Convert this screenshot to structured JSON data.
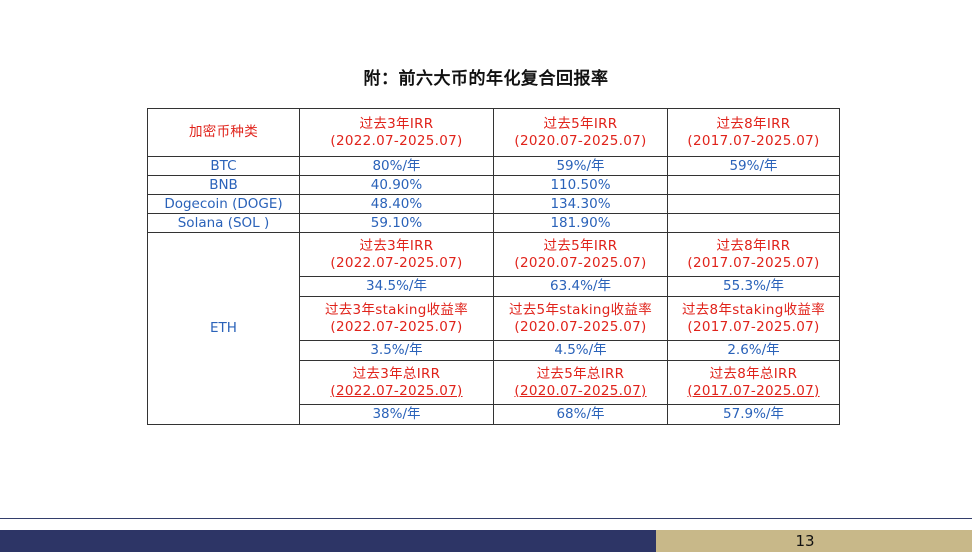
{
  "title": "附：前六大币的年化复合回报率",
  "table": {
    "corner_label": "加密币种类",
    "headers": [
      {
        "line1": "过去3年IRR",
        "line2": "(2022.07-2025.07)"
      },
      {
        "line1": "过去5年IRR",
        "line2": "(2020.07-2025.07)"
      },
      {
        "line1": "过去8年IRR",
        "line2": "(2017.07-2025.07)"
      }
    ],
    "rows": [
      {
        "name": "BTC",
        "values": [
          "80%/年",
          "59%/年",
          "59%/年"
        ]
      },
      {
        "name": "BNB",
        "values": [
          "40.90%",
          "110.50%",
          ""
        ]
      },
      {
        "name": "Dogecoin (DOGE)",
        "values": [
          "48.40%",
          "134.30%",
          ""
        ]
      },
      {
        "name": "Solana (SOL )",
        "values": [
          "59.10%",
          "181.90%",
          ""
        ]
      }
    ],
    "eth": {
      "name": "ETH",
      "sections": [
        {
          "headers": [
            {
              "line1": "过去3年IRR",
              "line2": "(2022.07-2025.07)"
            },
            {
              "line1": "过去5年IRR",
              "line2": "(2020.07-2025.07)"
            },
            {
              "line1": "过去8年IRR",
              "line2": "(2017.07-2025.07)"
            }
          ],
          "values": [
            "34.5%/年",
            "63.4%/年",
            "55.3%/年"
          ]
        },
        {
          "headers": [
            {
              "line1": "过去3年staking收益率",
              "line2": "(2022.07-2025.07)"
            },
            {
              "line1": "过去5年staking收益率",
              "line2": "(2020.07-2025.07)"
            },
            {
              "line1": "过去8年staking收益率",
              "line2": "(2017.07-2025.07)"
            }
          ],
          "values": [
            "3.5%/年",
            "4.5%/年",
            "2.6%/年"
          ]
        },
        {
          "headers": [
            {
              "line1": "过去3年总IRR",
              "line2": "(2022.07-2025.07)"
            },
            {
              "line1": "过去5年总IRR",
              "line2": "(2020.07-2025.07)"
            },
            {
              "line1": "过去8年总IRR",
              "line2": "(2017.07-2025.07)"
            }
          ],
          "values": [
            "38%/年",
            "68%/年",
            "57.9%/年"
          ]
        }
      ]
    }
  },
  "footer": {
    "page_number": "13",
    "colors": {
      "left_bar": "#2d3566",
      "right_bar": "#c8b889",
      "header_text": "#e0231b",
      "value_text": "#2a62b9"
    }
  }
}
